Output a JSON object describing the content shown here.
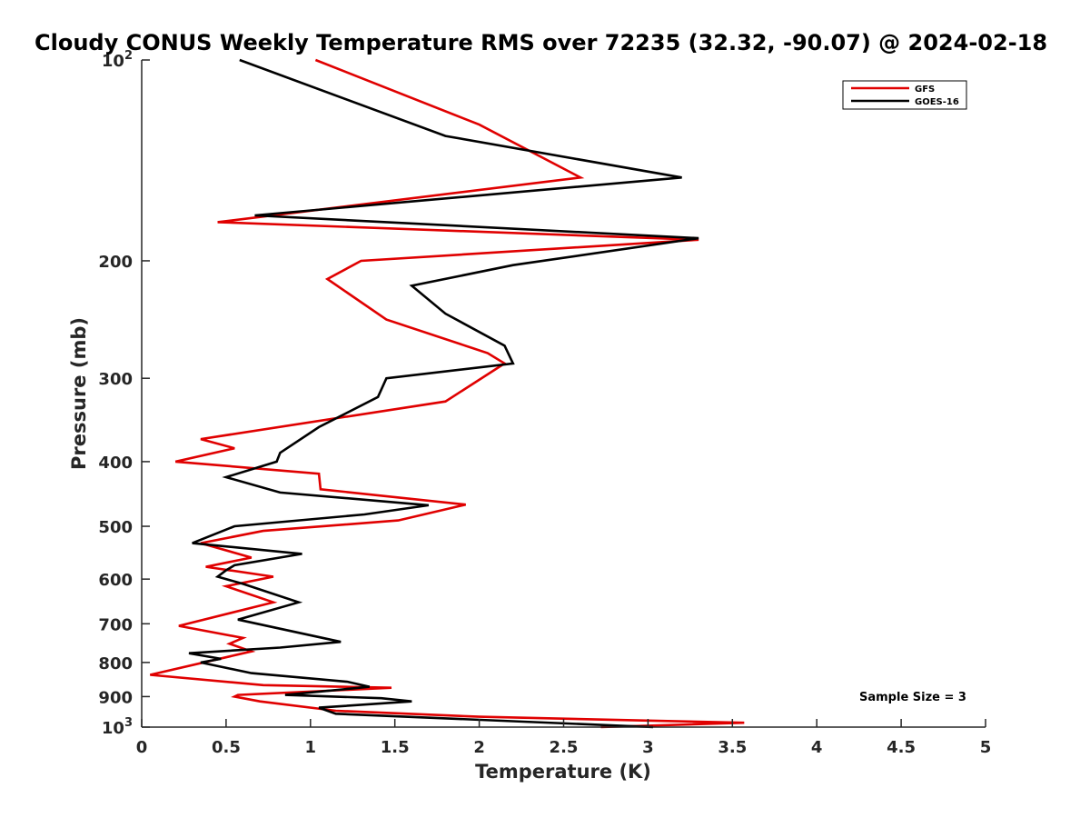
{
  "chart_data": {
    "type": "line",
    "title": "Cloudy CONUS Weekly Temperature RMS over 72235 (32.32, -90.07) @ 2024-02-18",
    "xlabel": "Temperature (K)",
    "ylabel": "Pressure (mb)",
    "xlim": [
      0,
      5
    ],
    "ylim": [
      100,
      1000
    ],
    "y_scale": "log",
    "y_reversed": true,
    "grid": false,
    "legend_position": "top-right",
    "x_ticks": [
      "0",
      "0.5",
      "1",
      "1.5",
      "2",
      "2.5",
      "3",
      "3.5",
      "4",
      "4.5",
      "5"
    ],
    "y_ticks": [
      {
        "value": 100,
        "label": "10",
        "sup": "2"
      },
      {
        "value": 200,
        "label": "200",
        "sup": ""
      },
      {
        "value": 300,
        "label": "300",
        "sup": ""
      },
      {
        "value": 400,
        "label": "400",
        "sup": ""
      },
      {
        "value": 500,
        "label": "500",
        "sup": ""
      },
      {
        "value": 600,
        "label": "600",
        "sup": ""
      },
      {
        "value": 700,
        "label": "700",
        "sup": ""
      },
      {
        "value": 800,
        "label": "800",
        "sup": ""
      },
      {
        "value": 900,
        "label": "900",
        "sup": ""
      },
      {
        "value": 1000,
        "label": "10",
        "sup": "3"
      }
    ],
    "annotation": "Sample Size = 3",
    "series": [
      {
        "name": "GFS",
        "color": "#e00000",
        "points": [
          [
            1.03,
            100
          ],
          [
            2.0,
            125
          ],
          [
            2.6,
            150
          ],
          [
            0.45,
            175
          ],
          [
            3.3,
            186
          ],
          [
            1.3,
            200
          ],
          [
            1.1,
            213
          ],
          [
            1.45,
            245
          ],
          [
            2.05,
            275
          ],
          [
            2.15,
            285
          ],
          [
            1.8,
            325
          ],
          [
            0.35,
            370
          ],
          [
            0.55,
            382
          ],
          [
            0.2,
            400
          ],
          [
            1.05,
            417
          ],
          [
            1.06,
            440
          ],
          [
            1.92,
            464
          ],
          [
            1.52,
            490
          ],
          [
            0.72,
            508
          ],
          [
            0.35,
            530
          ],
          [
            0.65,
            557
          ],
          [
            0.38,
            575
          ],
          [
            0.78,
            595
          ],
          [
            0.5,
            615
          ],
          [
            0.78,
            650
          ],
          [
            0.22,
            705
          ],
          [
            0.6,
            735
          ],
          [
            0.52,
            750
          ],
          [
            0.65,
            770
          ],
          [
            0.05,
            835
          ],
          [
            0.72,
            865
          ],
          [
            1.48,
            873
          ],
          [
            0.57,
            895
          ],
          [
            0.55,
            900
          ],
          [
            0.7,
            915
          ],
          [
            1.15,
            945
          ],
          [
            2.0,
            965
          ],
          [
            3.57,
            985
          ],
          [
            2.72,
            1000
          ]
        ]
      },
      {
        "name": "GOES-16",
        "color": "#000000",
        "points": [
          [
            0.58,
            100
          ],
          [
            1.8,
            130
          ],
          [
            3.2,
            150
          ],
          [
            0.67,
            171
          ],
          [
            3.3,
            185
          ],
          [
            2.2,
            203
          ],
          [
            1.6,
            218
          ],
          [
            1.8,
            240
          ],
          [
            2.15,
            268
          ],
          [
            2.2,
            285
          ],
          [
            1.45,
            300
          ],
          [
            1.4,
            320
          ],
          [
            1.05,
            355
          ],
          [
            0.82,
            388
          ],
          [
            0.8,
            400
          ],
          [
            0.5,
            422
          ],
          [
            0.82,
            445
          ],
          [
            1.7,
            465
          ],
          [
            1.32,
            480
          ],
          [
            0.55,
            500
          ],
          [
            0.3,
            530
          ],
          [
            0.95,
            550
          ],
          [
            0.55,
            572
          ],
          [
            0.5,
            582
          ],
          [
            0.45,
            595
          ],
          [
            0.6,
            610
          ],
          [
            0.93,
            650
          ],
          [
            0.57,
            690
          ],
          [
            1.18,
            745
          ],
          [
            0.82,
            760
          ],
          [
            0.28,
            775
          ],
          [
            0.47,
            790
          ],
          [
            0.35,
            800
          ],
          [
            0.65,
            830
          ],
          [
            1.22,
            855
          ],
          [
            1.35,
            870
          ],
          [
            1.25,
            875
          ],
          [
            0.85,
            895
          ],
          [
            1.42,
            905
          ],
          [
            1.6,
            915
          ],
          [
            1.05,
            935
          ],
          [
            1.15,
            955
          ],
          [
            3.03,
            1000
          ]
        ]
      }
    ]
  }
}
